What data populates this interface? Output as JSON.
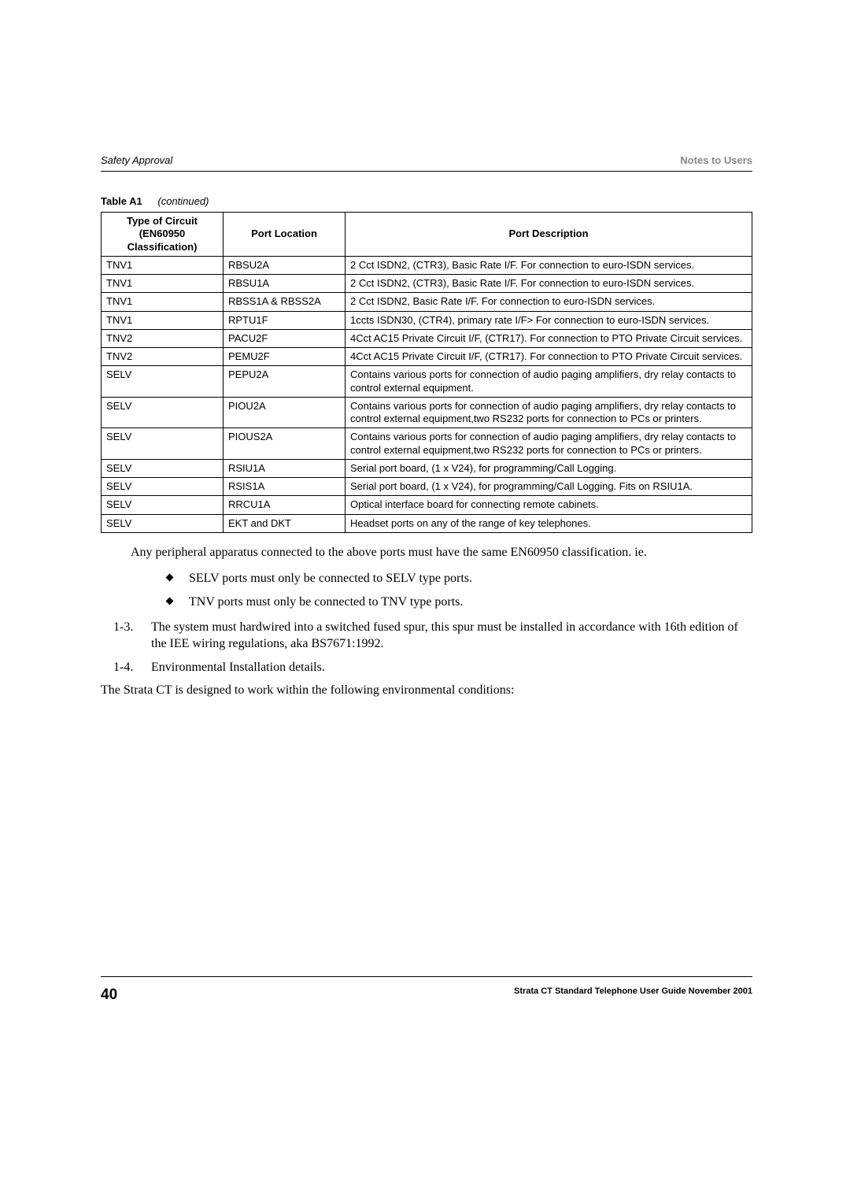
{
  "header": {
    "left": "Safety Approval",
    "right": "Notes to Users"
  },
  "tableCaption": {
    "label": "Table A1",
    "suffix": "(continued)"
  },
  "table": {
    "columns": [
      "Type of Circuit (EN60950 Classification)",
      "Port Location",
      "Port Description"
    ],
    "rows": [
      [
        "TNV1",
        "RBSU2A",
        "2 Cct ISDN2, (CTR3), Basic Rate I/F. For connection to euro-ISDN services."
      ],
      [
        "TNV1",
        "RBSU1A",
        "2 Cct ISDN2, (CTR3), Basic Rate I/F. For connection to euro-ISDN services."
      ],
      [
        "TNV1",
        "RBSS1A & RBSS2A",
        "2 Cct ISDN2, Basic Rate I/F. For connection to euro-ISDN services."
      ],
      [
        "TNV1",
        "RPTU1F",
        "1ccts ISDN30, (CTR4), primary rate I/F> For connection to euro-ISDN services."
      ],
      [
        "TNV2",
        "PACU2F",
        "4Cct AC15 Private Circuit I/F, (CTR17). For connection to PTO Private Circuit services."
      ],
      [
        "TNV2",
        "PEMU2F",
        "4Cct AC15 Private Circuit I/F, (CTR17). For connection to PTO Private Circuit services."
      ],
      [
        "SELV",
        "PEPU2A",
        "Contains various ports for connection of audio paging amplifiers, dry relay contacts to control external equipment."
      ],
      [
        "SELV",
        "PIOU2A",
        "Contains various ports for connection of audio paging amplifiers, dry relay contacts to control external equipment,two RS232 ports for connection to PCs or printers."
      ],
      [
        "SELV",
        "PIOUS2A",
        "Contains various ports for connection of audio paging amplifiers, dry relay contacts to control external equipment,two RS232 ports for connection to PCs or printers."
      ],
      [
        "SELV",
        "RSIU1A",
        "Serial port board, (1 x V24), for programming/Call Logging."
      ],
      [
        "SELV",
        "RSIS1A",
        "Serial port board, (1 x V24), for programming/Call Logging. Fits on RSIU1A."
      ],
      [
        "SELV",
        "RRCU1A",
        "Optical interface board for connecting remote cabinets."
      ],
      [
        "SELV",
        "EKT and DKT",
        "Headset ports on any of the range of key telephones."
      ]
    ]
  },
  "body": {
    "p1": "Any peripheral apparatus connected to the above ports must have the same EN60950 classification. ie.",
    "bullets": [
      "SELV ports must only be connected to SELV type ports.",
      "TNV ports must only be connected to TNV type ports."
    ],
    "numbered": [
      {
        "num": "1-3.",
        "text": "The system must hardwired into a switched fused spur, this spur must be installed in accordance with 16th edition of the IEE wiring regulations, aka BS7671:1992."
      },
      {
        "num": "1-4.",
        "text": "Environmental Installation details."
      }
    ],
    "p2": "The Strata CT is designed to work within the following environmental conditions:"
  },
  "footer": {
    "page": "40",
    "text": "Strata CT Standard Telephone User Guide  November 2001"
  }
}
